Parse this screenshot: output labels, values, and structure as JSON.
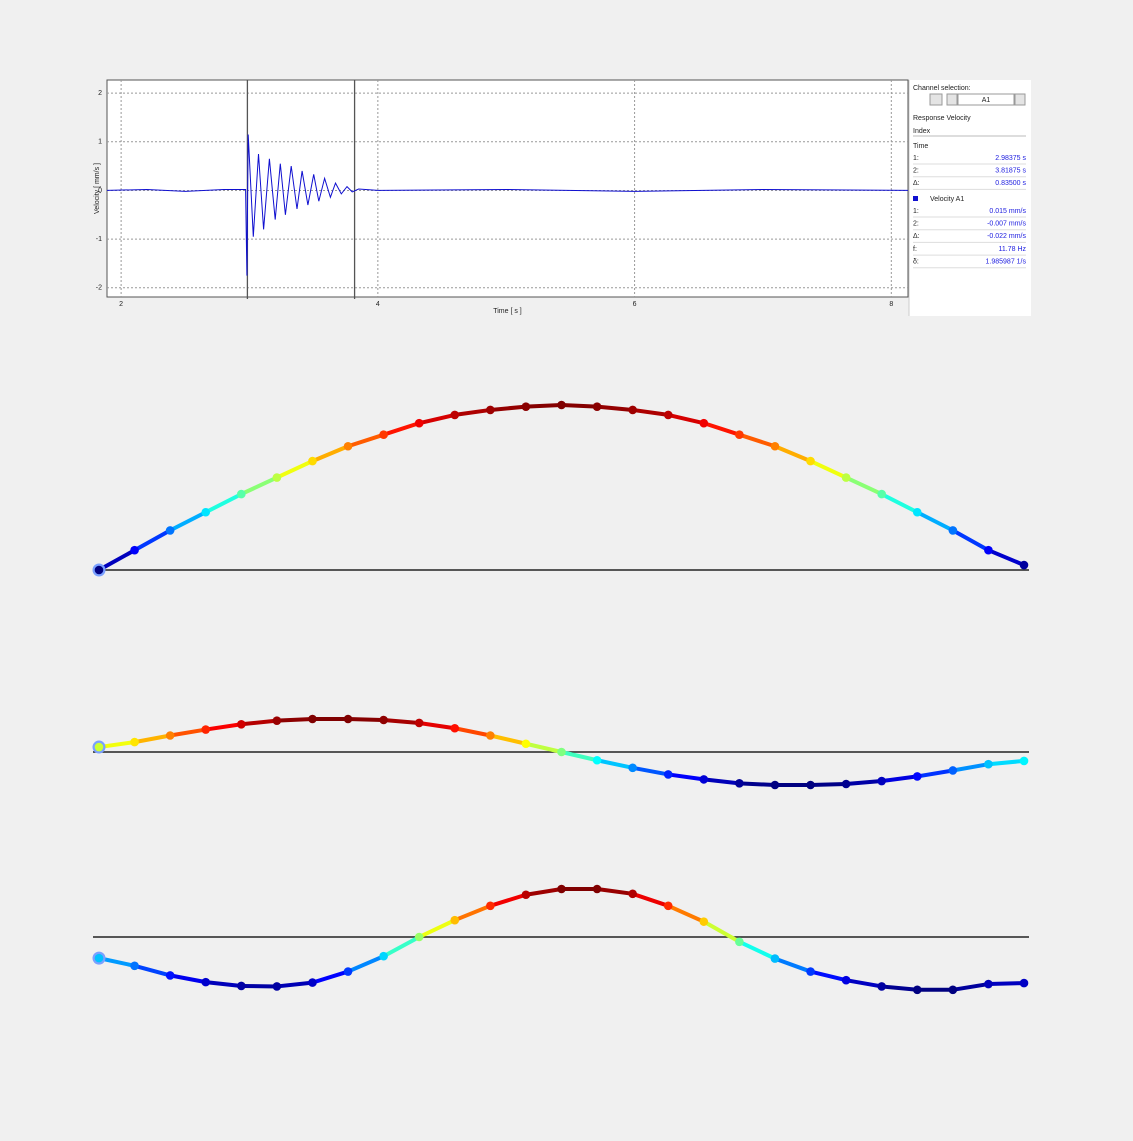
{
  "chart_data": [
    {
      "type": "line",
      "xlabel": "Time [ s ]",
      "ylabel": "Velocity [ mm/s ]",
      "xlim": [
        1.89,
        8.13
      ],
      "ylim": [
        -2.19,
        2.27
      ],
      "xticks": [
        2,
        4,
        6,
        8
      ],
      "yticks": [
        -2,
        -1,
        0,
        1,
        2
      ],
      "grid": true,
      "cursors": [
        2.98375,
        3.81875
      ],
      "series": [
        {
          "name": "Velocity A1",
          "color": "#1010d0",
          "x": [
            1.89,
            2.2,
            2.5,
            2.8,
            2.97,
            2.98,
            2.99,
            3.03,
            3.07,
            3.11,
            3.155,
            3.2,
            3.24,
            3.28,
            3.325,
            3.37,
            3.41,
            3.455,
            3.5,
            3.54,
            3.585,
            3.63,
            3.67,
            3.715,
            3.76,
            3.8,
            3.85,
            4.0,
            5.0,
            6.0,
            7.0,
            8.13
          ],
          "values": [
            0,
            0.02,
            -0.02,
            0.02,
            0.02,
            -1.75,
            1.15,
            -0.95,
            0.75,
            -0.8,
            0.65,
            -0.6,
            0.55,
            -0.5,
            0.5,
            -0.38,
            0.4,
            -0.3,
            0.33,
            -0.22,
            0.25,
            -0.14,
            0.15,
            -0.07,
            0.08,
            -0.03,
            0.03,
            0,
            0.02,
            -0.02,
            0.02,
            0
          ]
        }
      ]
    },
    {
      "type": "mode",
      "colormap": "jet",
      "values": [
        0,
        0.12,
        0.24,
        0.35,
        0.46,
        0.56,
        0.66,
        0.75,
        0.82,
        0.89,
        0.94,
        0.97,
        0.99,
        1,
        0.99,
        0.97,
        0.94,
        0.89,
        0.82,
        0.75,
        0.66,
        0.56,
        0.46,
        0.35,
        0.24,
        0.12,
        0.03
      ]
    },
    {
      "type": "mode",
      "colormap": "jet",
      "values": [
        0.15,
        0.3,
        0.5,
        0.68,
        0.84,
        0.95,
        1,
        1,
        0.97,
        0.88,
        0.72,
        0.5,
        0.25,
        0,
        -0.25,
        -0.48,
        -0.68,
        -0.83,
        -0.95,
        -1,
        -1,
        -0.97,
        -0.88,
        -0.74,
        -0.56,
        -0.37,
        -0.27
      ]
    },
    {
      "type": "mode",
      "colormap": "jet",
      "values": [
        -0.44,
        -0.6,
        -0.8,
        -0.94,
        -1.02,
        -1.03,
        -0.95,
        -0.72,
        -0.4,
        0,
        0.35,
        0.65,
        0.88,
        1,
        1,
        0.9,
        0.65,
        0.32,
        -0.1,
        -0.45,
        -0.72,
        -0.9,
        -1.03,
        -1.1,
        -1.1,
        -0.98,
        -0.96
      ]
    }
  ],
  "panel": {
    "channel_label": "Channel selection:",
    "channel": "A1",
    "response": "Response Velocity",
    "index": "Index",
    "time_heading": "Time",
    "time_rows": [
      [
        "1:",
        "2.98375 s"
      ],
      [
        "2:",
        "3.81875 s"
      ],
      [
        "Δ:",
        "0.83500 s"
      ]
    ],
    "velocity_heading": "Velocity A1",
    "velocity_rows": [
      [
        "1:",
        "0.015 mm/s"
      ],
      [
        "2:",
        "-0.007 mm/s"
      ],
      [
        "Δ:",
        "-0.022 mm/s"
      ],
      [
        "f:",
        "11.78 Hz"
      ],
      [
        "δ:",
        "1.985987 1/s"
      ]
    ]
  }
}
